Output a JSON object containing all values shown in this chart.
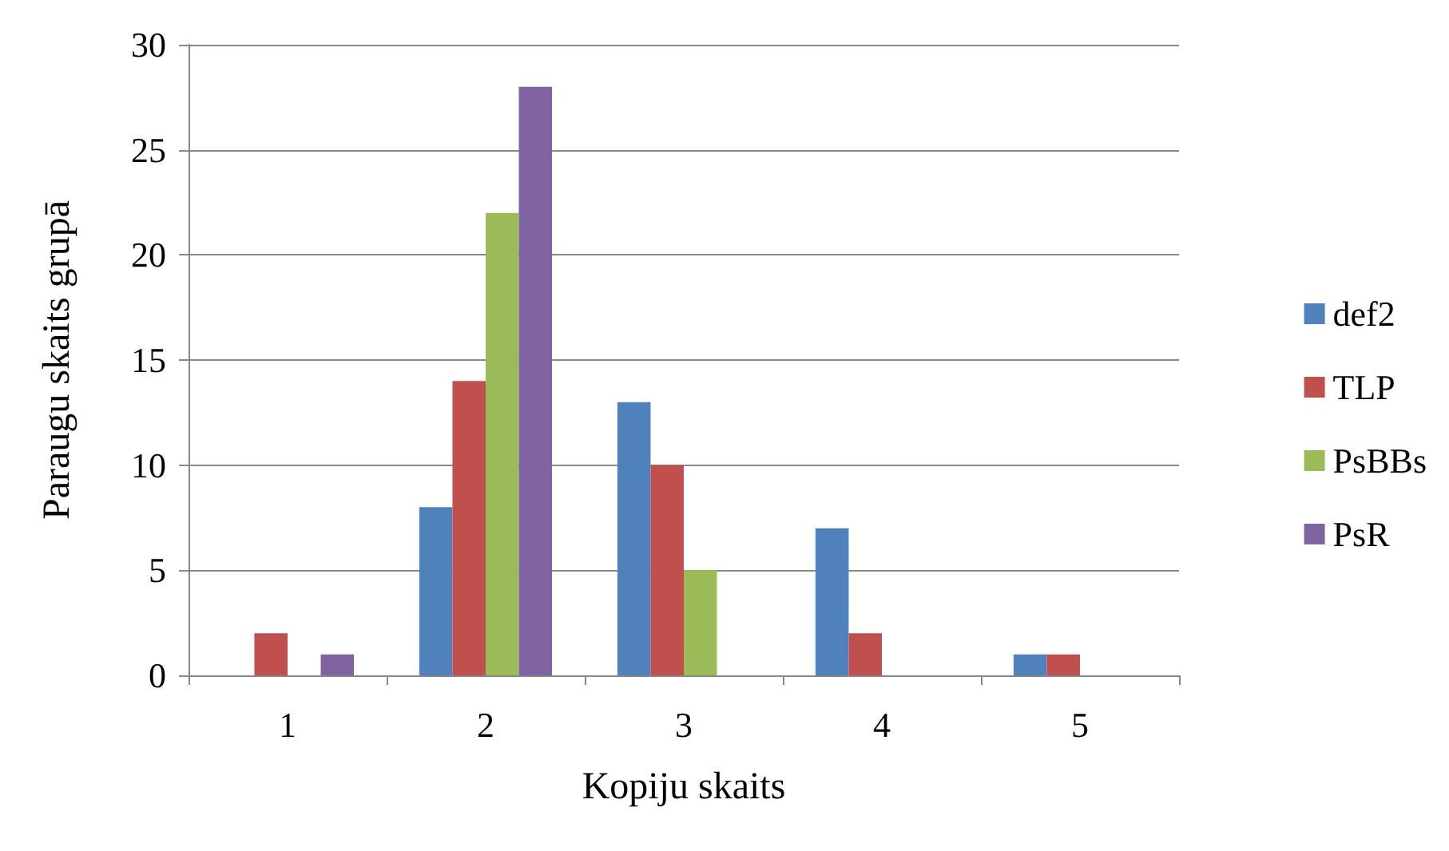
{
  "chart_data": {
    "type": "bar",
    "xlabel": "Kopiju skaits",
    "ylabel": "Paraugu skaits grupā",
    "categories": [
      "1",
      "2",
      "3",
      "4",
      "5"
    ],
    "series": [
      {
        "name": "def2",
        "color": "#4f81bd",
        "values": [
          0,
          8,
          13,
          7,
          1
        ]
      },
      {
        "name": "TLP",
        "color": "#c0504d",
        "values": [
          2,
          14,
          10,
          2,
          1
        ]
      },
      {
        "name": "PsBBs",
        "color": "#9bbb59",
        "values": [
          0,
          22,
          5,
          0,
          0
        ]
      },
      {
        "name": "PsR",
        "color": "#8064a2",
        "values": [
          1,
          28,
          0,
          0,
          0
        ]
      }
    ],
    "ylim": [
      0,
      30
    ],
    "yticks": [
      0,
      5,
      10,
      15,
      20,
      25,
      30
    ],
    "grid": "y",
    "legend": "right"
  }
}
